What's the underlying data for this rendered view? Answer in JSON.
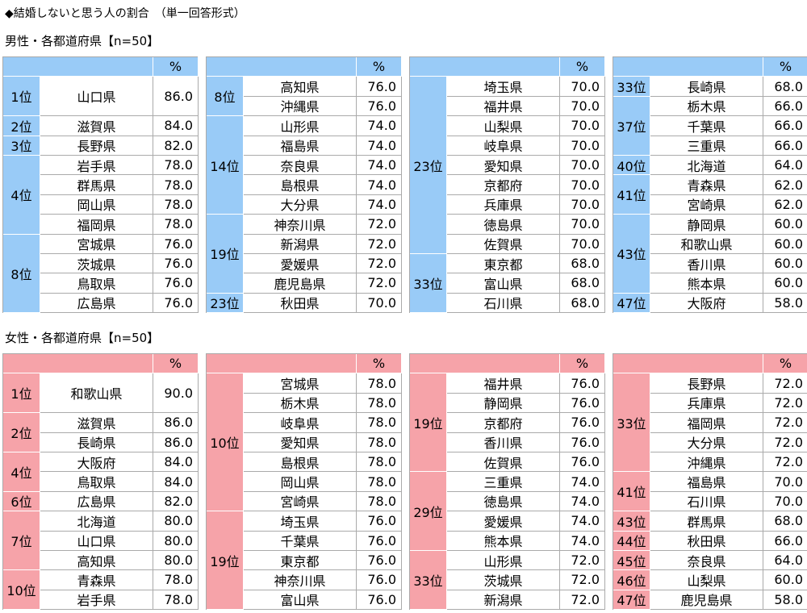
{
  "title": "◆結婚しないと思う人の割合　（単一回答形式）",
  "sections": [
    {
      "heading": "男性・各都道府県【n=50】",
      "color": "#99cbf7",
      "tables": [
        {
          "unit": "%",
          "groups": [
            {
              "rank": "1位",
              "rows": [
                {
                  "pref": "山口県",
                  "value": "86.0"
                }
              ]
            },
            {
              "rank": "2位",
              "rows": [
                {
                  "pref": "滋賀県",
                  "value": "84.0"
                }
              ]
            },
            {
              "rank": "3位",
              "rows": [
                {
                  "pref": "長野県",
                  "value": "82.0"
                }
              ]
            },
            {
              "rank": "4位",
              "rows": [
                {
                  "pref": "岩手県",
                  "value": "78.0"
                },
                {
                  "pref": "群馬県",
                  "value": "78.0"
                },
                {
                  "pref": "岡山県",
                  "value": "78.0"
                },
                {
                  "pref": "福岡県",
                  "value": "78.0"
                }
              ]
            },
            {
              "rank": "8位",
              "rows": [
                {
                  "pref": "宮城県",
                  "value": "76.0"
                },
                {
                  "pref": "茨城県",
                  "value": "76.0"
                },
                {
                  "pref": "鳥取県",
                  "value": "76.0"
                },
                {
                  "pref": "広島県",
                  "value": "76.0"
                }
              ]
            }
          ]
        },
        {
          "unit": "%",
          "groups": [
            {
              "rank": "8位",
              "rows": [
                {
                  "pref": "高知県",
                  "value": "76.0"
                },
                {
                  "pref": "沖縄県",
                  "value": "76.0"
                }
              ]
            },
            {
              "rank": "14位",
              "rows": [
                {
                  "pref": "山形県",
                  "value": "74.0"
                },
                {
                  "pref": "福島県",
                  "value": "74.0"
                },
                {
                  "pref": "奈良県",
                  "value": "74.0"
                },
                {
                  "pref": "島根県",
                  "value": "74.0"
                },
                {
                  "pref": "大分県",
                  "value": "74.0"
                }
              ]
            },
            {
              "rank": "19位",
              "rows": [
                {
                  "pref": "神奈川県",
                  "value": "72.0"
                },
                {
                  "pref": "新潟県",
                  "value": "72.0"
                },
                {
                  "pref": "愛媛県",
                  "value": "72.0"
                },
                {
                  "pref": "鹿児島県",
                  "value": "72.0"
                }
              ]
            },
            {
              "rank": "23位",
              "rows": [
                {
                  "pref": "秋田県",
                  "value": "70.0"
                }
              ]
            }
          ]
        },
        {
          "unit": "%",
          "groups": [
            {
              "rank": "23位",
              "rows": [
                {
                  "pref": "埼玉県",
                  "value": "70.0"
                },
                {
                  "pref": "福井県",
                  "value": "70.0"
                },
                {
                  "pref": "山梨県",
                  "value": "70.0"
                },
                {
                  "pref": "岐阜県",
                  "value": "70.0"
                },
                {
                  "pref": "愛知県",
                  "value": "70.0"
                },
                {
                  "pref": "京都府",
                  "value": "70.0"
                },
                {
                  "pref": "兵庫県",
                  "value": "70.0"
                },
                {
                  "pref": "徳島県",
                  "value": "70.0"
                },
                {
                  "pref": "佐賀県",
                  "value": "70.0"
                }
              ]
            },
            {
              "rank": "33位",
              "rows": [
                {
                  "pref": "東京都",
                  "value": "68.0"
                },
                {
                  "pref": "富山県",
                  "value": "68.0"
                },
                {
                  "pref": "石川県",
                  "value": "68.0"
                }
              ]
            }
          ]
        },
        {
          "unit": "%",
          "groups": [
            {
              "rank": "33位",
              "rows": [
                {
                  "pref": "長崎県",
                  "value": "68.0"
                }
              ]
            },
            {
              "rank": "37位",
              "rows": [
                {
                  "pref": "栃木県",
                  "value": "66.0"
                },
                {
                  "pref": "千葉県",
                  "value": "66.0"
                },
                {
                  "pref": "三重県",
                  "value": "66.0"
                }
              ]
            },
            {
              "rank": "40位",
              "rows": [
                {
                  "pref": "北海道",
                  "value": "64.0"
                }
              ]
            },
            {
              "rank": "41位",
              "rows": [
                {
                  "pref": "青森県",
                  "value": "62.0"
                },
                {
                  "pref": "宮崎県",
                  "value": "62.0"
                }
              ]
            },
            {
              "rank": "43位",
              "rows": [
                {
                  "pref": "静岡県",
                  "value": "60.0"
                },
                {
                  "pref": "和歌山県",
                  "value": "60.0"
                },
                {
                  "pref": "香川県",
                  "value": "60.0"
                },
                {
                  "pref": "熊本県",
                  "value": "60.0"
                }
              ]
            },
            {
              "rank": "47位",
              "rows": [
                {
                  "pref": "大阪府",
                  "value": "58.0"
                }
              ]
            }
          ]
        }
      ]
    },
    {
      "heading": "女性・各都道府県【n=50】",
      "color": "#f6a3a9",
      "tables": [
        {
          "unit": "%",
          "groups": [
            {
              "rank": "1位",
              "rows": [
                {
                  "pref": "和歌山県",
                  "value": "90.0"
                }
              ]
            },
            {
              "rank": "2位",
              "rows": [
                {
                  "pref": "滋賀県",
                  "value": "86.0"
                },
                {
                  "pref": "長崎県",
                  "value": "86.0"
                }
              ]
            },
            {
              "rank": "4位",
              "rows": [
                {
                  "pref": "大阪府",
                  "value": "84.0"
                },
                {
                  "pref": "鳥取県",
                  "value": "84.0"
                }
              ]
            },
            {
              "rank": "6位",
              "rows": [
                {
                  "pref": "広島県",
                  "value": "82.0"
                }
              ]
            },
            {
              "rank": "7位",
              "rows": [
                {
                  "pref": "北海道",
                  "value": "80.0"
                },
                {
                  "pref": "山口県",
                  "value": "80.0"
                },
                {
                  "pref": "高知県",
                  "value": "80.0"
                }
              ]
            },
            {
              "rank": "10位",
              "rows": [
                {
                  "pref": "青森県",
                  "value": "78.0"
                },
                {
                  "pref": "岩手県",
                  "value": "78.0"
                }
              ]
            }
          ]
        },
        {
          "unit": "%",
          "groups": [
            {
              "rank": "10位",
              "rows": [
                {
                  "pref": "宮城県",
                  "value": "78.0"
                },
                {
                  "pref": "栃木県",
                  "value": "78.0"
                },
                {
                  "pref": "岐阜県",
                  "value": "78.0"
                },
                {
                  "pref": "愛知県",
                  "value": "78.0"
                },
                {
                  "pref": "島根県",
                  "value": "78.0"
                },
                {
                  "pref": "岡山県",
                  "value": "78.0"
                },
                {
                  "pref": "宮崎県",
                  "value": "78.0"
                }
              ]
            },
            {
              "rank": "19位",
              "rows": [
                {
                  "pref": "埼玉県",
                  "value": "76.0"
                },
                {
                  "pref": "千葉県",
                  "value": "76.0"
                },
                {
                  "pref": "東京都",
                  "value": "76.0"
                },
                {
                  "pref": "神奈川県",
                  "value": "76.0"
                },
                {
                  "pref": "富山県",
                  "value": "76.0"
                }
              ]
            }
          ]
        },
        {
          "unit": "%",
          "groups": [
            {
              "rank": "19位",
              "rows": [
                {
                  "pref": "福井県",
                  "value": "76.0"
                },
                {
                  "pref": "静岡県",
                  "value": "76.0"
                },
                {
                  "pref": "京都府",
                  "value": "76.0"
                },
                {
                  "pref": "香川県",
                  "value": "76.0"
                },
                {
                  "pref": "佐賀県",
                  "value": "76.0"
                }
              ]
            },
            {
              "rank": "29位",
              "rows": [
                {
                  "pref": "三重県",
                  "value": "74.0"
                },
                {
                  "pref": "徳島県",
                  "value": "74.0"
                },
                {
                  "pref": "愛媛県",
                  "value": "74.0"
                },
                {
                  "pref": "熊本県",
                  "value": "74.0"
                }
              ]
            },
            {
              "rank": "33位",
              "rows": [
                {
                  "pref": "山形県",
                  "value": "72.0"
                },
                {
                  "pref": "茨城県",
                  "value": "72.0"
                },
                {
                  "pref": "新潟県",
                  "value": "72.0"
                }
              ]
            }
          ]
        },
        {
          "unit": "%",
          "groups": [
            {
              "rank": "33位",
              "rows": [
                {
                  "pref": "長野県",
                  "value": "72.0"
                },
                {
                  "pref": "兵庫県",
                  "value": "72.0"
                },
                {
                  "pref": "福岡県",
                  "value": "72.0"
                },
                {
                  "pref": "大分県",
                  "value": "72.0"
                },
                {
                  "pref": "沖縄県",
                  "value": "72.0"
                }
              ]
            },
            {
              "rank": "41位",
              "rows": [
                {
                  "pref": "福島県",
                  "value": "70.0"
                },
                {
                  "pref": "石川県",
                  "value": "70.0"
                }
              ]
            },
            {
              "rank": "43位",
              "rows": [
                {
                  "pref": "群馬県",
                  "value": "68.0"
                }
              ]
            },
            {
              "rank": "44位",
              "rows": [
                {
                  "pref": "秋田県",
                  "value": "66.0"
                }
              ]
            },
            {
              "rank": "45位",
              "rows": [
                {
                  "pref": "奈良県",
                  "value": "64.0"
                }
              ]
            },
            {
              "rank": "46位",
              "rows": [
                {
                  "pref": "山梨県",
                  "value": "60.0"
                }
              ]
            },
            {
              "rank": "47位",
              "rows": [
                {
                  "pref": "鹿児島県",
                  "value": "58.0"
                }
              ]
            }
          ]
        }
      ]
    }
  ]
}
